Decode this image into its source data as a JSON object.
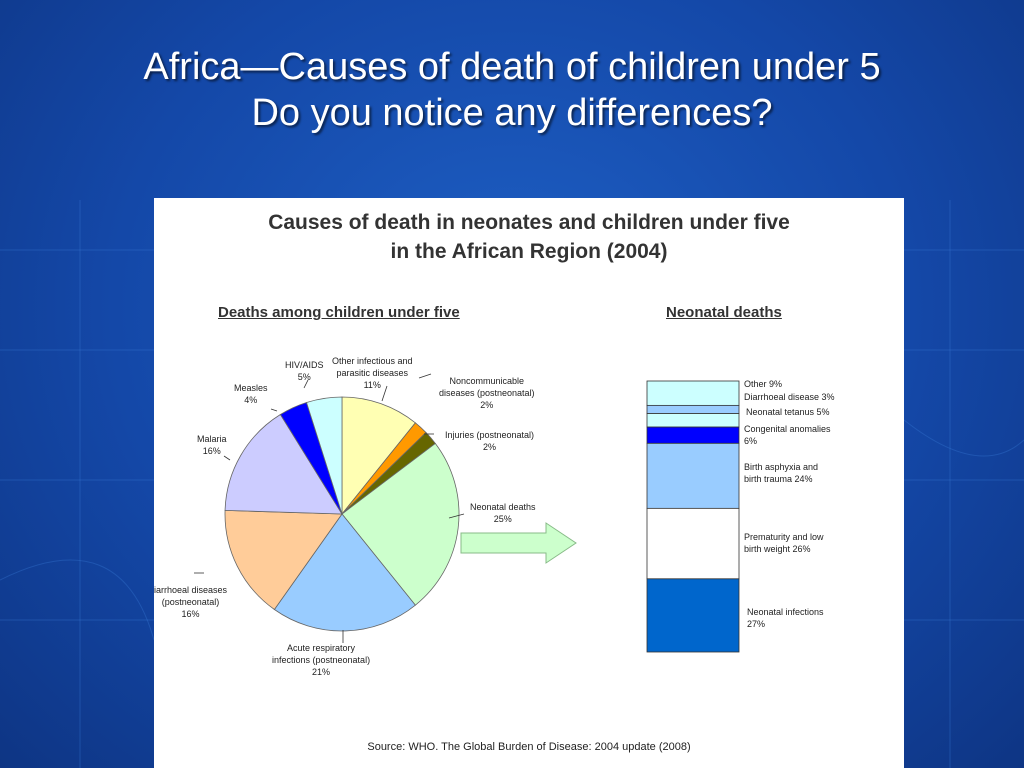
{
  "slide": {
    "title_line1": "Africa—Causes of death of children under 5",
    "title_line2": "Do you notice any differences?"
  },
  "figure": {
    "title_line1": "Causes of death in neonates and children under five",
    "title_line2": "in the African Region (2004)",
    "source": "Source: WHO. The Global Burden of Disease: 2004 update (2008)"
  },
  "chart_data": [
    {
      "type": "pie",
      "title": "Deaths among children under five",
      "slices": [
        {
          "label": "Other infectious and parasitic diseases",
          "value": 11,
          "color": "#ffffb3",
          "label_lines": [
            "Other infectious and",
            "parasitic diseases",
            "11%"
          ]
        },
        {
          "label": "Noncommunicable diseases (postneonatal)",
          "value": 2,
          "color": "#ff9900",
          "label_lines": [
            "Noncommunicable",
            "diseases (postneonatal)",
            "2%"
          ]
        },
        {
          "label": "Injuries (postneonatal)",
          "value": 2,
          "color": "#666600",
          "label_lines": [
            "Injuries (postneonatal)",
            "2%"
          ]
        },
        {
          "label": "Neonatal deaths",
          "value": 25,
          "color": "#ccffcc",
          "label_lines": [
            "Neonatal deaths",
            "25%"
          ]
        },
        {
          "label": "Acute respiratory infections (postneonatal)",
          "value": 21,
          "color": "#99ccff",
          "label_lines": [
            "Acute respiratory",
            "infections (postneonatal)",
            "21%"
          ]
        },
        {
          "label": "Diarrhoeal diseases (postneonatal)",
          "value": 16,
          "color": "#ffcc99",
          "label_lines": [
            "iarrhoeal diseases",
            "(postneonatal)",
            "16%"
          ]
        },
        {
          "label": "Malaria",
          "value": 16,
          "color": "#ccccff",
          "label_lines": [
            "Malaria",
            "16%"
          ]
        },
        {
          "label": "Measles",
          "value": 4,
          "color": "#0000ff",
          "label_lines": [
            "Measles",
            "4%"
          ]
        },
        {
          "label": "HIV/AIDS",
          "value": 5,
          "color": "#ccffff",
          "label_lines": [
            "HIV/AIDS",
            "5%"
          ]
        }
      ]
    },
    {
      "type": "bar",
      "stacked": true,
      "title": "Neonatal deaths",
      "segments": [
        {
          "label": "Other",
          "value": 9,
          "color": "#ccffff",
          "label_lines": [
            "Other 9%"
          ]
        },
        {
          "label": "Diarrhoeal disease",
          "value": 3,
          "color": "#99ccff",
          "label_lines": [
            "Diarrhoeal disease 3%"
          ]
        },
        {
          "label": "Neonatal tetanus",
          "value": 5,
          "color": "#ccffff",
          "label_lines": [
            "Neonatal tetanus 5%"
          ]
        },
        {
          "label": "Congenital anomalies",
          "value": 6,
          "color": "#0000ff",
          "label_lines": [
            "Congenital anomalies",
            "6%"
          ]
        },
        {
          "label": "Birth asphyxia and birth trauma",
          "value": 24,
          "color": "#99ccff",
          "label_lines": [
            "Birth asphyxia and",
            "birth trauma 24%"
          ]
        },
        {
          "label": "Prematurity and low birth weight",
          "value": 26,
          "color": "#ffffff",
          "label_lines": [
            "Prematurity and low",
            "birth weight 26%"
          ]
        },
        {
          "label": "Neonatal infections",
          "value": 27,
          "color": "#0066cc",
          "label_lines": [
            "Neonatal infections",
            "27%"
          ]
        }
      ]
    }
  ]
}
